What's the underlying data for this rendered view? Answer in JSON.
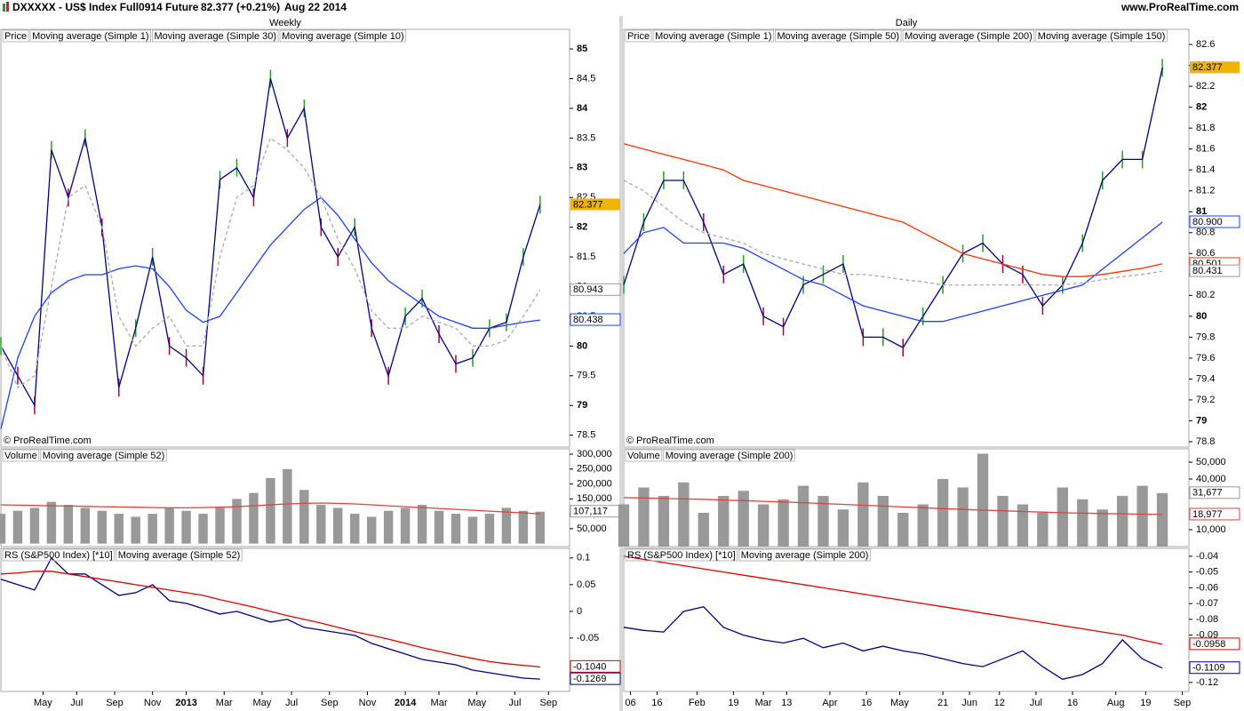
{
  "header": {
    "symbol": "DXXXXX - US$ Index Full0914 Future",
    "quote": "82.377 (+0.21%)",
    "date": "Aug 22 2014",
    "site": "www.ProRealTime.com"
  },
  "chart_data": [
    {
      "type": "line",
      "title": "Weekly",
      "watermark": "© ProRealTime.com",
      "legend_label": "Price",
      "x": [
        0,
        4,
        8,
        12,
        16,
        20,
        24,
        28,
        32,
        36,
        40,
        44,
        48,
        52,
        56,
        60,
        64,
        68,
        72,
        76,
        80,
        84,
        88,
        92,
        96,
        100,
        104,
        108,
        112,
        116,
        120,
        124,
        128
      ],
      "xlim": [
        0,
        135
      ],
      "ylim": [
        78.3,
        85.33
      ],
      "yticks": [
        78.5,
        79,
        79.5,
        80,
        80.5,
        81,
        81.5,
        82,
        82.5,
        83,
        83.5,
        84,
        84.5,
        85
      ],
      "series": [
        {
          "name": "Moving average (Simple 1)",
          "color": "#000080",
          "style": "line",
          "bars": true,
          "values": [
            80.0,
            79.5,
            79.0,
            83.3,
            82.5,
            83.5,
            82.0,
            79.3,
            80.3,
            81.5,
            80.0,
            79.8,
            79.5,
            82.8,
            83.0,
            82.5,
            84.5,
            83.5,
            84.0,
            82.0,
            81.5,
            82.0,
            80.3,
            79.5,
            80.5,
            80.8,
            80.2,
            79.7,
            79.8,
            80.3,
            80.4,
            81.5,
            82.377
          ]
        },
        {
          "name": "Moving average (Simple 30)",
          "color": "#1f3fff",
          "style": "line",
          "values": [
            78.6,
            79.8,
            80.5,
            80.9,
            81.1,
            81.2,
            81.2,
            81.3,
            81.35,
            81.3,
            81.0,
            80.6,
            80.4,
            80.5,
            80.9,
            81.3,
            81.7,
            82.0,
            82.3,
            82.5,
            82.2,
            81.8,
            81.4,
            81.1,
            80.9,
            80.7,
            80.5,
            80.4,
            80.3,
            80.3,
            80.35,
            80.4,
            80.438
          ]
        },
        {
          "name": "Moving average (Simple 10)",
          "color": "#aaaaaa",
          "style": "dashed",
          "values": [
            80.0,
            79.3,
            79.5,
            81.0,
            82.5,
            82.7,
            82.0,
            80.5,
            80.0,
            80.3,
            80.5,
            80.0,
            80.0,
            81.5,
            82.5,
            82.7,
            83.5,
            83.3,
            83.0,
            82.5,
            81.8,
            81.3,
            80.6,
            80.3,
            80.3,
            80.5,
            80.4,
            80.3,
            80.0,
            80.0,
            80.1,
            80.5,
            80.943
          ]
        }
      ],
      "badges": [
        {
          "value": 82.377,
          "color": "#000000",
          "fill": "#f0b400"
        },
        {
          "value": 80.943,
          "color": "#999999"
        },
        {
          "value": 80.438,
          "color": "#1f3fff"
        }
      ]
    },
    {
      "type": "bar",
      "x": [
        0,
        4,
        8,
        12,
        16,
        20,
        24,
        28,
        32,
        36,
        40,
        44,
        48,
        52,
        56,
        60,
        64,
        68,
        72,
        76,
        80,
        84,
        88,
        92,
        96,
        100,
        104,
        108,
        112,
        116,
        120,
        124,
        128
      ],
      "xlim": [
        0,
        135
      ],
      "ylim": [
        -10000,
        318000
      ],
      "yticks": [
        {
          "value": 50000,
          "label": "50,000"
        },
        {
          "value": 100000,
          "label": "100,000"
        },
        {
          "value": 150000,
          "label": "150,000"
        },
        {
          "value": 200000,
          "label": "200,000"
        },
        {
          "value": 250000,
          "label": "250,000"
        },
        {
          "value": 300000,
          "label": "300,000"
        }
      ],
      "series": [
        {
          "name": "Volume",
          "color": "#999999",
          "style": "histogram",
          "values": [
            100000,
            110000,
            120000,
            140000,
            130000,
            120000,
            110000,
            100000,
            90000,
            100000,
            120000,
            110000,
            100000,
            120000,
            150000,
            170000,
            220000,
            250000,
            180000,
            130000,
            120000,
            100000,
            90000,
            110000,
            120000,
            130000,
            110000,
            100000,
            90000,
            100000,
            120000,
            110000,
            107117
          ]
        },
        {
          "name": "Moving average (Simple 52)",
          "color": "#e04040",
          "style": "line",
          "values": [
            130000,
            129000,
            128000,
            127000,
            126000,
            125000,
            124000,
            123000,
            122000,
            121000,
            120000,
            120000,
            121000,
            122000,
            124000,
            127000,
            130000,
            133000,
            135000,
            136000,
            135000,
            133000,
            130000,
            127000,
            124000,
            121000,
            118000,
            115000,
            112000,
            109000,
            106000,
            103000,
            100000
          ]
        }
      ],
      "badges": [
        {
          "value": 107117,
          "label": "107,117",
          "color": "#999999"
        }
      ]
    },
    {
      "type": "line",
      "x": [
        0,
        4,
        8,
        12,
        16,
        20,
        24,
        28,
        32,
        36,
        40,
        44,
        48,
        52,
        56,
        60,
        64,
        68,
        72,
        76,
        80,
        84,
        88,
        92,
        96,
        100,
        104,
        108,
        112,
        116,
        120,
        124,
        128
      ],
      "xlim": [
        0,
        135
      ],
      "ylim": [
        -0.15,
        0.118
      ],
      "yticks": [
        -0.05,
        0,
        0.05,
        0.1
      ],
      "xticks": [
        {
          "value": 10,
          "label": "May"
        },
        {
          "value": 18,
          "label": "Jul"
        },
        {
          "value": 27,
          "label": "Sep"
        },
        {
          "value": 36,
          "label": "Nov"
        },
        {
          "value": 44,
          "label": "2013"
        },
        {
          "value": 53,
          "label": "Mar"
        },
        {
          "value": 62,
          "label": "May"
        },
        {
          "value": 69,
          "label": "Jul"
        },
        {
          "value": 78,
          "label": "Sep"
        },
        {
          "value": 87,
          "label": "Nov"
        },
        {
          "value": 96,
          "label": "2014"
        },
        {
          "value": 104,
          "label": "Mar"
        },
        {
          "value": 113,
          "label": "May"
        },
        {
          "value": 122,
          "label": "Jul"
        },
        {
          "value": 130,
          "label": "Sep"
        }
      ],
      "series": [
        {
          "name": "RS (S&P500 Index) [*10]",
          "color": "#000080",
          "style": "line",
          "values": [
            0.06,
            0.05,
            0.04,
            0.1,
            0.07,
            0.07,
            0.05,
            0.03,
            0.035,
            0.05,
            0.02,
            0.015,
            0.005,
            -0.005,
            0,
            -0.01,
            -0.02,
            -0.015,
            -0.03,
            -0.035,
            -0.04,
            -0.045,
            -0.06,
            -0.07,
            -0.08,
            -0.09,
            -0.095,
            -0.1,
            -0.11,
            -0.115,
            -0.12,
            -0.125,
            -0.1269
          ]
        },
        {
          "name": "Moving average (Simple 52)",
          "color": "#e00000",
          "style": "line",
          "values": [
            0.07,
            0.072,
            0.075,
            0.075,
            0.07,
            0.065,
            0.06,
            0.055,
            0.05,
            0.045,
            0.04,
            0.035,
            0.03,
            0.022,
            0.015,
            0.008,
            0,
            -0.008,
            -0.015,
            -0.022,
            -0.03,
            -0.038,
            -0.045,
            -0.052,
            -0.06,
            -0.068,
            -0.075,
            -0.082,
            -0.088,
            -0.094,
            -0.098,
            -0.101,
            -0.104
          ]
        }
      ],
      "badges": [
        {
          "value": -0.104,
          "label": "-0.1040",
          "color": "#e00000"
        },
        {
          "value": -0.1269,
          "color": "#000080"
        }
      ]
    },
    {
      "type": "line",
      "title": "Daily",
      "watermark": "© ProRealTime.com",
      "legend_label": "Price",
      "x": [
        0,
        6,
        12,
        18,
        24,
        30,
        36,
        42,
        48,
        54,
        60,
        66,
        72,
        78,
        84,
        90,
        96,
        102,
        108,
        114,
        120,
        126,
        132,
        138,
        144,
        150,
        156,
        162
      ],
      "xlim": [
        0,
        170
      ],
      "ylim": [
        78.749,
        82.745
      ],
      "yticks": [
        78.8,
        79,
        79.2,
        79.4,
        79.6,
        79.8,
        80,
        80.2,
        80.4,
        80.6,
        80.8,
        81,
        81.2,
        81.4,
        81.6,
        81.8,
        82,
        82.2,
        82.4,
        82.6
      ],
      "series": [
        {
          "name": "Moving average (Simple 1)",
          "color": "#000080",
          "style": "line",
          "bars": true,
          "values": [
            80.3,
            80.9,
            81.3,
            81.3,
            80.9,
            80.4,
            80.5,
            80.0,
            79.9,
            80.3,
            80.4,
            80.5,
            79.8,
            79.8,
            79.7,
            80.0,
            80.3,
            80.6,
            80.7,
            80.5,
            80.4,
            80.1,
            80.3,
            80.7,
            81.3,
            81.5,
            81.5,
            82.377
          ]
        },
        {
          "name": "Moving average (Simple 50)",
          "color": "#1f3fff",
          "style": "line",
          "values": [
            80.6,
            80.8,
            80.85,
            80.7,
            80.7,
            80.7,
            80.65,
            80.55,
            80.45,
            80.35,
            80.3,
            80.2,
            80.1,
            80.05,
            80.0,
            79.95,
            79.95,
            80.0,
            80.05,
            80.1,
            80.15,
            80.2,
            80.25,
            80.3,
            80.45,
            80.6,
            80.75,
            80.9
          ]
        },
        {
          "name": "Moving average (Simple 200)",
          "color": "#ff3300",
          "style": "line",
          "values": [
            81.65,
            81.6,
            81.55,
            81.5,
            81.45,
            81.4,
            81.3,
            81.25,
            81.2,
            81.15,
            81.1,
            81.05,
            81.0,
            80.95,
            80.9,
            80.8,
            80.7,
            80.6,
            80.55,
            80.5,
            80.45,
            80.4,
            80.38,
            80.38,
            80.4,
            80.43,
            80.46,
            80.501
          ]
        },
        {
          "name": "Moving average (Simple 150)",
          "color": "#aaaaaa",
          "style": "dashed",
          "values": [
            81.3,
            81.2,
            81.05,
            80.9,
            80.8,
            80.75,
            80.7,
            80.6,
            80.55,
            80.5,
            80.45,
            80.4,
            80.4,
            80.38,
            80.35,
            80.33,
            80.3,
            80.3,
            80.3,
            80.3,
            80.3,
            80.3,
            80.3,
            80.32,
            80.35,
            80.38,
            80.4,
            80.431
          ]
        }
      ],
      "badges": [
        {
          "value": 82.377,
          "color": "#000000",
          "fill": "#f0b400"
        },
        {
          "value": 80.9,
          "label": "80.900",
          "color": "#1f3fff"
        },
        {
          "value": 80.501,
          "color": "#ff3300"
        },
        {
          "value": 80.431,
          "color": "#999999"
        }
      ]
    },
    {
      "type": "bar",
      "x": [
        0,
        6,
        12,
        18,
        24,
        30,
        36,
        42,
        48,
        54,
        60,
        66,
        72,
        78,
        84,
        90,
        96,
        102,
        108,
        114,
        120,
        126,
        132,
        138,
        144,
        150,
        156,
        162
      ],
      "xlim": [
        0,
        170
      ],
      "ylim": [
        0,
        57900
      ],
      "yticks": [
        {
          "value": 10000,
          "label": "10,000"
        },
        {
          "value": 40000,
          "label": "40,000"
        },
        {
          "value": 50000,
          "label": "50,000"
        }
      ],
      "series": [
        {
          "name": "Volume",
          "color": "#999999",
          "style": "histogram",
          "values": [
            25000,
            35000,
            30000,
            38000,
            20000,
            30000,
            33000,
            25000,
            28000,
            36000,
            30000,
            22000,
            38000,
            30000,
            20000,
            25000,
            40000,
            35000,
            55000,
            30000,
            25000,
            20000,
            35000,
            28000,
            22000,
            30000,
            36000,
            31677
          ]
        },
        {
          "name": "Moving average (Simple 200)",
          "color": "#e04040",
          "style": "line",
          "values": [
            29000,
            28800,
            28500,
            28200,
            28000,
            27600,
            27200,
            26800,
            26400,
            26000,
            25500,
            25000,
            24500,
            24000,
            23500,
            23000,
            22500,
            22000,
            21600,
            21200,
            20800,
            20400,
            20000,
            19800,
            19600,
            19400,
            19200,
            18977
          ]
        }
      ],
      "badges": [
        {
          "value": 31677,
          "label": "31,677",
          "color": "#999999"
        },
        {
          "value": 18977,
          "label": "18,977",
          "color": "#e04040"
        }
      ]
    },
    {
      "type": "line",
      "x": [
        0,
        6,
        12,
        18,
        24,
        30,
        36,
        42,
        48,
        54,
        60,
        66,
        72,
        78,
        84,
        90,
        96,
        102,
        108,
        114,
        120,
        126,
        132,
        138,
        144,
        150,
        156,
        162
      ],
      "xlim": [
        0,
        170
      ],
      "ylim": [
        -0.1257,
        -0.035
      ],
      "yticks": [
        -0.12,
        -0.09,
        -0.08,
        -0.07,
        -0.06,
        -0.05,
        -0.04
      ],
      "xticks": [
        {
          "value": 2,
          "label": "06"
        },
        {
          "value": 10,
          "label": "16"
        },
        {
          "value": 22,
          "label": "Feb"
        },
        {
          "value": 33,
          "label": "19"
        },
        {
          "value": 42,
          "label": "Mar"
        },
        {
          "value": 49,
          "label": "13"
        },
        {
          "value": 62,
          "label": "Apr"
        },
        {
          "value": 73,
          "label": "16"
        },
        {
          "value": 83,
          "label": "May"
        },
        {
          "value": 96,
          "label": "21"
        },
        {
          "value": 104,
          "label": "Jun"
        },
        {
          "value": 113,
          "label": "12"
        },
        {
          "value": 124,
          "label": "Jul"
        },
        {
          "value": 135,
          "label": "16"
        },
        {
          "value": 148,
          "label": "Aug"
        },
        {
          "value": 157,
          "label": "19"
        },
        {
          "value": 168,
          "label": "Sep"
        }
      ],
      "series": [
        {
          "name": "RS (S&P500 Index) [*10]",
          "color": "#000080",
          "style": "line",
          "values": [
            -0.085,
            -0.087,
            -0.088,
            -0.075,
            -0.072,
            -0.085,
            -0.09,
            -0.093,
            -0.095,
            -0.092,
            -0.098,
            -0.095,
            -0.1,
            -0.097,
            -0.1,
            -0.102,
            -0.105,
            -0.108,
            -0.11,
            -0.105,
            -0.1,
            -0.11,
            -0.118,
            -0.115,
            -0.108,
            -0.093,
            -0.105,
            -0.1109
          ]
        },
        {
          "name": "Moving average (Simple 200)",
          "color": "#e00000",
          "style": "line",
          "values": [
            -0.04,
            -0.042,
            -0.044,
            -0.046,
            -0.048,
            -0.05,
            -0.052,
            -0.054,
            -0.056,
            -0.058,
            -0.06,
            -0.062,
            -0.064,
            -0.066,
            -0.068,
            -0.07,
            -0.072,
            -0.074,
            -0.076,
            -0.078,
            -0.08,
            -0.082,
            -0.084,
            -0.086,
            -0.088,
            -0.09,
            -0.093,
            -0.0958
          ]
        }
      ],
      "badges": [
        {
          "value": -0.0958,
          "color": "#e00000"
        },
        {
          "value": -0.1109,
          "color": "#000080"
        }
      ]
    }
  ]
}
